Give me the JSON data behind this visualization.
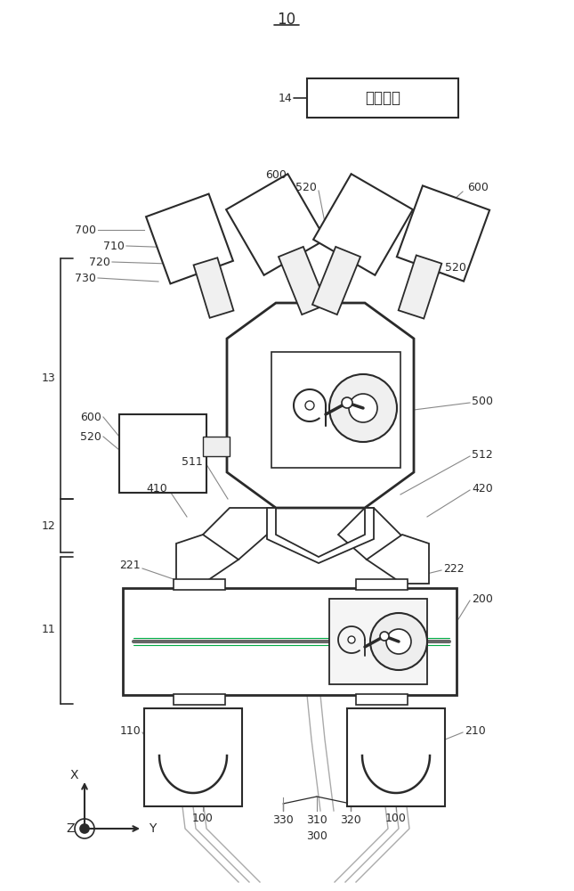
{
  "bg_color": "#ffffff",
  "line_color": "#2a2a2a",
  "ann_color": "#888888",
  "figsize": [
    6.45,
    10.0
  ],
  "dpi": 100,
  "title_text": "10",
  "control_text": "控制模块",
  "label14": "14"
}
